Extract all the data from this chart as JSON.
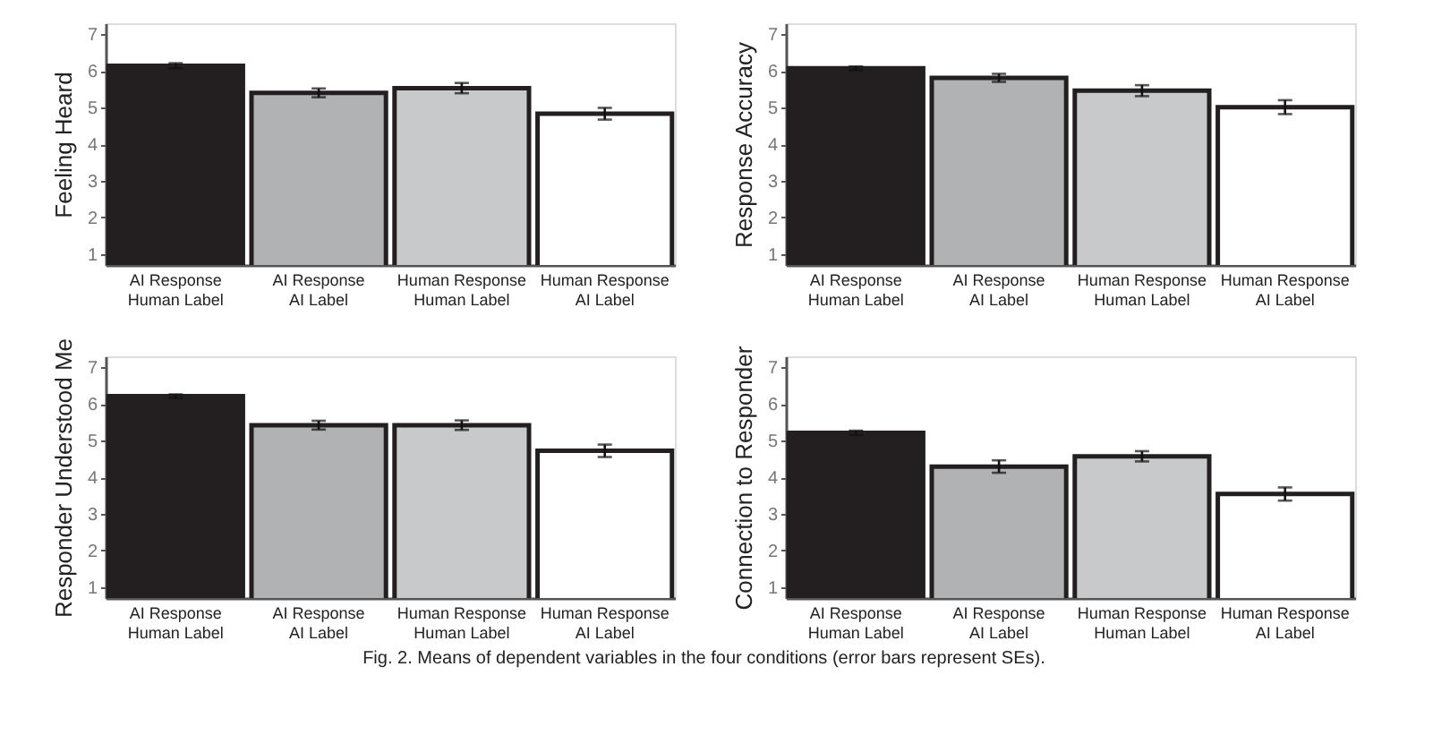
{
  "chart_data": [
    {
      "type": "bar",
      "ylabel": "Feeling Heard",
      "categories": [
        "AI Response\nHuman Label",
        "AI Response\nAI Label",
        "Human Response\nHuman Label",
        "Human Response\nAI Label"
      ],
      "values": [
        6.14,
        5.4,
        5.53,
        4.83
      ],
      "errors": [
        0.07,
        0.12,
        0.14,
        0.16
      ],
      "colors": [
        "#231f20",
        "#b1b2b4",
        "#c8c9cb",
        "#ffffff"
      ],
      "ylim": [
        0.7,
        7.3
      ],
      "yticks": [
        1,
        2,
        3,
        4,
        5,
        6,
        7
      ],
      "grid": false,
      "legend": false
    },
    {
      "type": "bar",
      "ylabel": "Response Accuracy",
      "categories": [
        "AI Response\nHuman Label",
        "AI Response\nAI Label",
        "Human Response\nHuman Label",
        "Human Response\nAI Label"
      ],
      "values": [
        6.07,
        5.81,
        5.46,
        5.01
      ],
      "errors": [
        0.05,
        0.11,
        0.15,
        0.19
      ],
      "colors": [
        "#231f20",
        "#b1b2b4",
        "#c8c9cb",
        "#ffffff"
      ],
      "ylim": [
        0.7,
        7.3
      ],
      "yticks": [
        1,
        2,
        3,
        4,
        5,
        6,
        7
      ],
      "grid": false,
      "legend": false
    },
    {
      "type": "bar",
      "ylabel": "Responder Understood Me",
      "categories": [
        "AI Response\nHuman Label",
        "AI Response\nAI Label",
        "Human Response\nHuman Label",
        "Human Response\nAI Label"
      ],
      "values": [
        6.21,
        5.42,
        5.42,
        4.72
      ],
      "errors": [
        0.05,
        0.12,
        0.13,
        0.17
      ],
      "colors": [
        "#231f20",
        "#b1b2b4",
        "#c8c9cb",
        "#ffffff"
      ],
      "ylim": [
        0.7,
        7.3
      ],
      "yticks": [
        1,
        2,
        3,
        4,
        5,
        6,
        7
      ],
      "grid": false,
      "legend": false
    },
    {
      "type": "bar",
      "ylabel": "Connection to Responder",
      "categories": [
        "AI Response\nHuman Label",
        "AI Response\nAI Label",
        "Human Response\nHuman Label",
        "Human Response\nAI Label"
      ],
      "values": [
        5.21,
        4.29,
        4.57,
        3.54
      ],
      "errors": [
        0.06,
        0.17,
        0.14,
        0.18
      ],
      "colors": [
        "#231f20",
        "#b1b2b4",
        "#c8c9cb",
        "#ffffff"
      ],
      "ylim": [
        0.7,
        7.3
      ],
      "yticks": [
        1,
        2,
        3,
        4,
        5,
        6,
        7
      ],
      "grid": false,
      "legend": false,
      "annotations": [
        "Fig. 2.  Means of dependent variables in the four conditions (error bars represent SEs)."
      ]
    }
  ]
}
